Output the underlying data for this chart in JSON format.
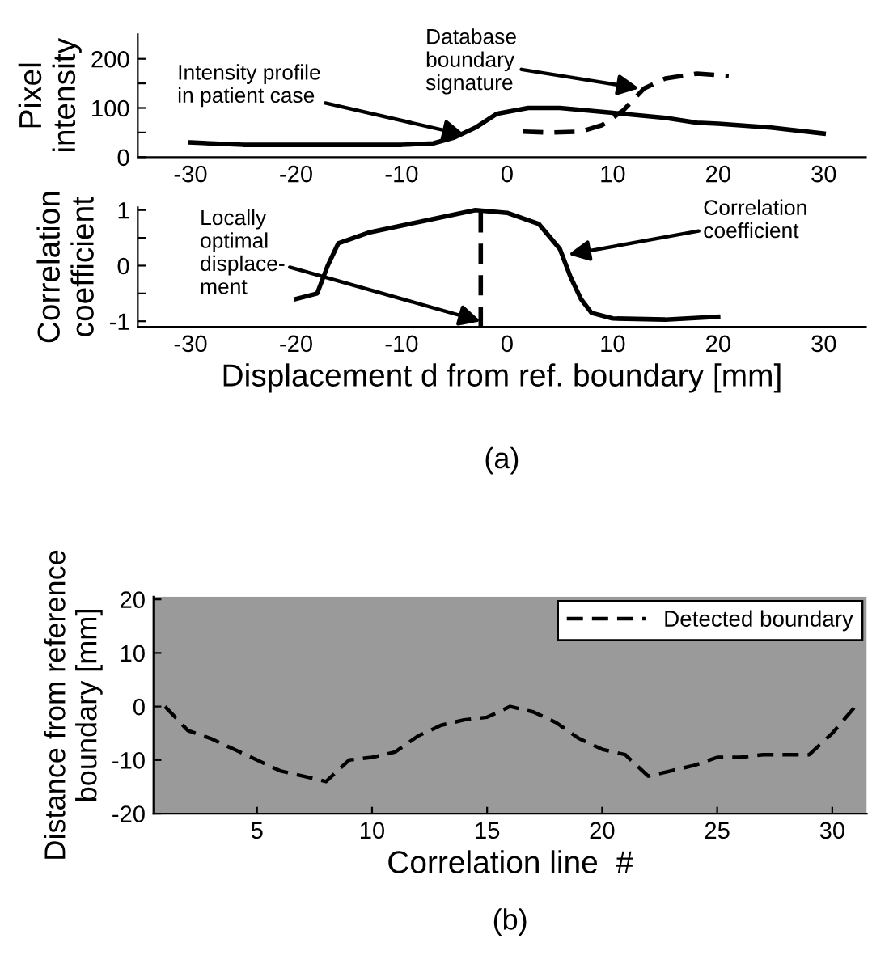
{
  "chart_data": [
    {
      "type": "line",
      "ylabel": "Pixel\nintensity",
      "xlim": [
        -35,
        34
      ],
      "xticks": [
        -30,
        -20,
        -10,
        0,
        10,
        20,
        30
      ],
      "ylim": [
        0,
        250
      ],
      "yticks": [
        0,
        {
          "value": 50,
          "label": null
        },
        100,
        {
          "value": 150,
          "label": null
        },
        200
      ],
      "grid": false,
      "legend": false,
      "series": [
        {
          "color": "#000000",
          "line_style": "solid",
          "x": [
            -30,
            -25,
            -20,
            -15,
            -10,
            -7,
            -5,
            -3,
            -1,
            2,
            5,
            10,
            15,
            18,
            20,
            25,
            30
          ],
          "values": [
            30,
            25,
            25,
            25,
            25,
            28,
            40,
            60,
            88,
            100,
            100,
            90,
            80,
            70,
            68,
            60,
            48
          ]
        },
        {
          "color": "#000000",
          "line_style": "dashed",
          "x": [
            1.5,
            4,
            7,
            9,
            11,
            13,
            15,
            18,
            21
          ],
          "values": [
            52,
            50,
            52,
            65,
            95,
            140,
            160,
            170,
            165
          ]
        }
      ],
      "annotations": [
        {
          "text": "Intensity profile\nin patient case",
          "x": -4,
          "y": 45
        },
        {
          "text": "Database\nboundary\nsignature",
          "x": 12.5,
          "y": 140
        }
      ]
    },
    {
      "type": "line",
      "ylabel": "Correlation\ncoefficient",
      "xlabel": "Displacement d from ref. boundary [mm]",
      "xlim": [
        -35,
        34
      ],
      "xticks": [
        -30,
        -20,
        -10,
        0,
        10,
        20,
        30
      ],
      "ylim": [
        -1.1,
        1.05
      ],
      "yticks": [
        -1,
        {
          "value": -0.5,
          "label": null
        },
        0,
        {
          "value": 0.5,
          "label": null
        },
        1
      ],
      "grid": false,
      "legend": false,
      "series": [
        {
          "color": "#000000",
          "line_style": "solid",
          "x": [
            -20,
            -18,
            -17,
            -16,
            -13,
            -8,
            -3,
            0,
            3,
            5,
            6,
            7,
            8,
            10,
            15,
            20
          ],
          "values": [
            -0.6,
            -0.5,
            0,
            0.4,
            0.6,
            0.8,
            1.0,
            0.95,
            0.75,
            0.3,
            -0.2,
            -0.6,
            -0.85,
            -0.95,
            -0.97,
            -0.92
          ]
        }
      ],
      "ref_lines": [
        {
          "axis": "x",
          "value": -2.5,
          "color": "#000000",
          "line_style": "dashed"
        }
      ],
      "annotations": [
        {
          "text": "Locally\noptimal\ndisplace-\nment",
          "x": -2.5,
          "y": -1
        },
        {
          "text": "Correlation\ncoefficient",
          "x": 5.8,
          "y": 0.2
        },
        "(a)"
      ]
    },
    {
      "type": "line",
      "ylabel": "Distance from reference\nboundary [mm]",
      "xlabel": "Correlation line  #",
      "xlim": [
        0.5,
        31.5
      ],
      "xticks": [
        5,
        10,
        15,
        20,
        25,
        30
      ],
      "ylim": [
        -20,
        20.5
      ],
      "yticks": [
        -20,
        -10,
        0,
        10,
        20
      ],
      "grid": false,
      "legend": "top right",
      "series": [
        {
          "name": "Detected boundary",
          "color": "#000000",
          "line_style": "dashed",
          "x": [
            1,
            2,
            3,
            4,
            5,
            6,
            7,
            8,
            9,
            10,
            11,
            12,
            13,
            14,
            15,
            16,
            17,
            18,
            19,
            20,
            21,
            22,
            23,
            24,
            25,
            26,
            27,
            28,
            29,
            30,
            31
          ],
          "values": [
            0,
            -4.5,
            -6,
            -8,
            -10,
            -12,
            -13,
            -14,
            -10,
            -9.5,
            -8.5,
            -5.5,
            -3.5,
            -2.5,
            -2,
            0,
            -1,
            -3,
            -6,
            -8,
            -9,
            -13,
            -12,
            -11,
            -9.5,
            -9.5,
            -9,
            -9,
            -9,
            -5,
            0
          ]
        }
      ],
      "annotations": [
        "(b)"
      ]
    }
  ]
}
